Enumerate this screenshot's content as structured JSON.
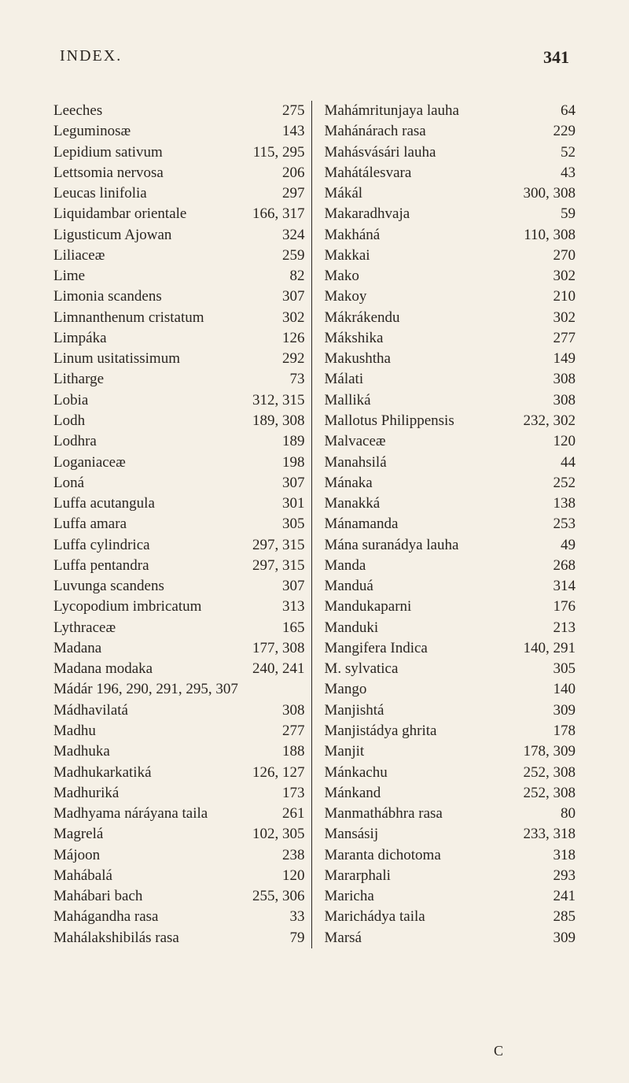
{
  "header": {
    "title": "INDEX.",
    "page": "341"
  },
  "footer": {
    "letter": "C"
  },
  "leftCol": [
    {
      "name": "Leeches",
      "page": "275"
    },
    {
      "name": "Leguminosæ",
      "page": "143"
    },
    {
      "name": "Lepidium sativum",
      "page": "115, 295"
    },
    {
      "name": "Lettsomia nervosa",
      "page": "206"
    },
    {
      "name": "Leucas linifolia",
      "page": "297"
    },
    {
      "name": "Liquidambar orientale",
      "page": "166, 317"
    },
    {
      "name": "Ligusticum Ajowan",
      "page": "324"
    },
    {
      "name": "Liliaceæ",
      "page": "259"
    },
    {
      "name": "Lime",
      "page": "82"
    },
    {
      "name": "Limonia scandens",
      "page": "307"
    },
    {
      "name": "Limnanthenum cristatum",
      "page": "302"
    },
    {
      "name": "Limpáka",
      "page": "126"
    },
    {
      "name": "Linum usitatissimum",
      "page": "292"
    },
    {
      "name": "Litharge",
      "page": "73"
    },
    {
      "name": "Lobia",
      "page": "312, 315"
    },
    {
      "name": "Lodh",
      "page": "189, 308"
    },
    {
      "name": "Lodhra",
      "page": "189"
    },
    {
      "name": "Loganiaceæ",
      "page": "198"
    },
    {
      "name": "Loná",
      "page": "307"
    },
    {
      "name": "Luffa acutangula",
      "page": "301"
    },
    {
      "name": "Luffa amara",
      "page": "305"
    },
    {
      "name": "Luffa cylindrica",
      "page": "297, 315"
    },
    {
      "name": "Luffa pentandra",
      "page": "297, 315"
    },
    {
      "name": "Luvunga scandens",
      "page": "307"
    },
    {
      "name": "Lycopodium imbricatum",
      "page": "313"
    },
    {
      "name": "Lythraceæ",
      "page": "165"
    },
    {
      "name": "Madana",
      "page": "177, 308"
    },
    {
      "name": "Madana modaka",
      "page": "240, 241"
    },
    {
      "name": "Mádár      196, 290, 291, 295, 307",
      "page": ""
    },
    {
      "name": "Mádhavilatá",
      "page": "308"
    },
    {
      "name": "Madhu",
      "page": "277"
    },
    {
      "name": "Madhuka",
      "page": "188"
    },
    {
      "name": "Madhukarkatiká",
      "page": "126, 127"
    },
    {
      "name": "Madhuriká",
      "page": "173"
    },
    {
      "name": "Madhyama náráyana taila",
      "page": "261"
    },
    {
      "name": "Magrelá",
      "page": "102, 305"
    },
    {
      "name": "Májoon",
      "page": "238"
    },
    {
      "name": "Mahábalá",
      "page": "120"
    },
    {
      "name": "Mahábari bach",
      "page": "255, 306"
    },
    {
      "name": "Mahágandha rasa",
      "page": "33"
    },
    {
      "name": "Mahálakshibilás rasa",
      "page": "79"
    }
  ],
  "rightCol": [
    {
      "name": "Mahámritunjaya lauha",
      "page": "64"
    },
    {
      "name": "Mahánárach rasa",
      "page": "229"
    },
    {
      "name": "Mahásvásári lauha",
      "page": "52"
    },
    {
      "name": "Mahátálesvara",
      "page": "43"
    },
    {
      "name": "Mákál",
      "page": "300, 308"
    },
    {
      "name": "Makaradhvaja",
      "page": "59"
    },
    {
      "name": "Makháná",
      "page": "110, 308"
    },
    {
      "name": "Makkai",
      "page": "270"
    },
    {
      "name": "Mako",
      "page": "302"
    },
    {
      "name": "Makoy",
      "page": "210"
    },
    {
      "name": "Mákrákendu",
      "page": "302"
    },
    {
      "name": "Mákshika",
      "page": "277"
    },
    {
      "name": "Makushtha",
      "page": "149"
    },
    {
      "name": "Málati",
      "page": "308"
    },
    {
      "name": "Malliká",
      "page": "308"
    },
    {
      "name": "Mallotus Philippensis",
      "page": "232, 302"
    },
    {
      "name": "Malvaceæ",
      "page": "120"
    },
    {
      "name": "Manahsilá",
      "page": "44"
    },
    {
      "name": "Mánaka",
      "page": "252"
    },
    {
      "name": "Manakká",
      "page": "138"
    },
    {
      "name": "Mánamanda",
      "page": "253"
    },
    {
      "name": "Mána suranádya lauha",
      "page": "49"
    },
    {
      "name": "Manda",
      "page": "268"
    },
    {
      "name": "Manduá",
      "page": "314"
    },
    {
      "name": "Mandukaparni",
      "page": "176"
    },
    {
      "name": "Manduki",
      "page": "213"
    },
    {
      "name": "Mangifera Indica",
      "page": "140, 291"
    },
    {
      "name": "M. sylvatica",
      "page": "305"
    },
    {
      "name": "Mango",
      "page": "140"
    },
    {
      "name": "Manjishtá",
      "page": "309"
    },
    {
      "name": "Manjistádya ghrita",
      "page": "178"
    },
    {
      "name": "Manjit",
      "page": "178, 309"
    },
    {
      "name": "Mánkachu",
      "page": "252, 308"
    },
    {
      "name": "Mánkand",
      "page": "252, 308"
    },
    {
      "name": "Manmathábhra rasa",
      "page": "80"
    },
    {
      "name": "Mansásij",
      "page": "233, 318"
    },
    {
      "name": "Maranta dichotoma",
      "page": "318"
    },
    {
      "name": "Mararphali",
      "page": "293"
    },
    {
      "name": "Maricha",
      "page": "241"
    },
    {
      "name": "Marichádya taila",
      "page": "285"
    },
    {
      "name": "Marsá",
      "page": "309"
    }
  ]
}
